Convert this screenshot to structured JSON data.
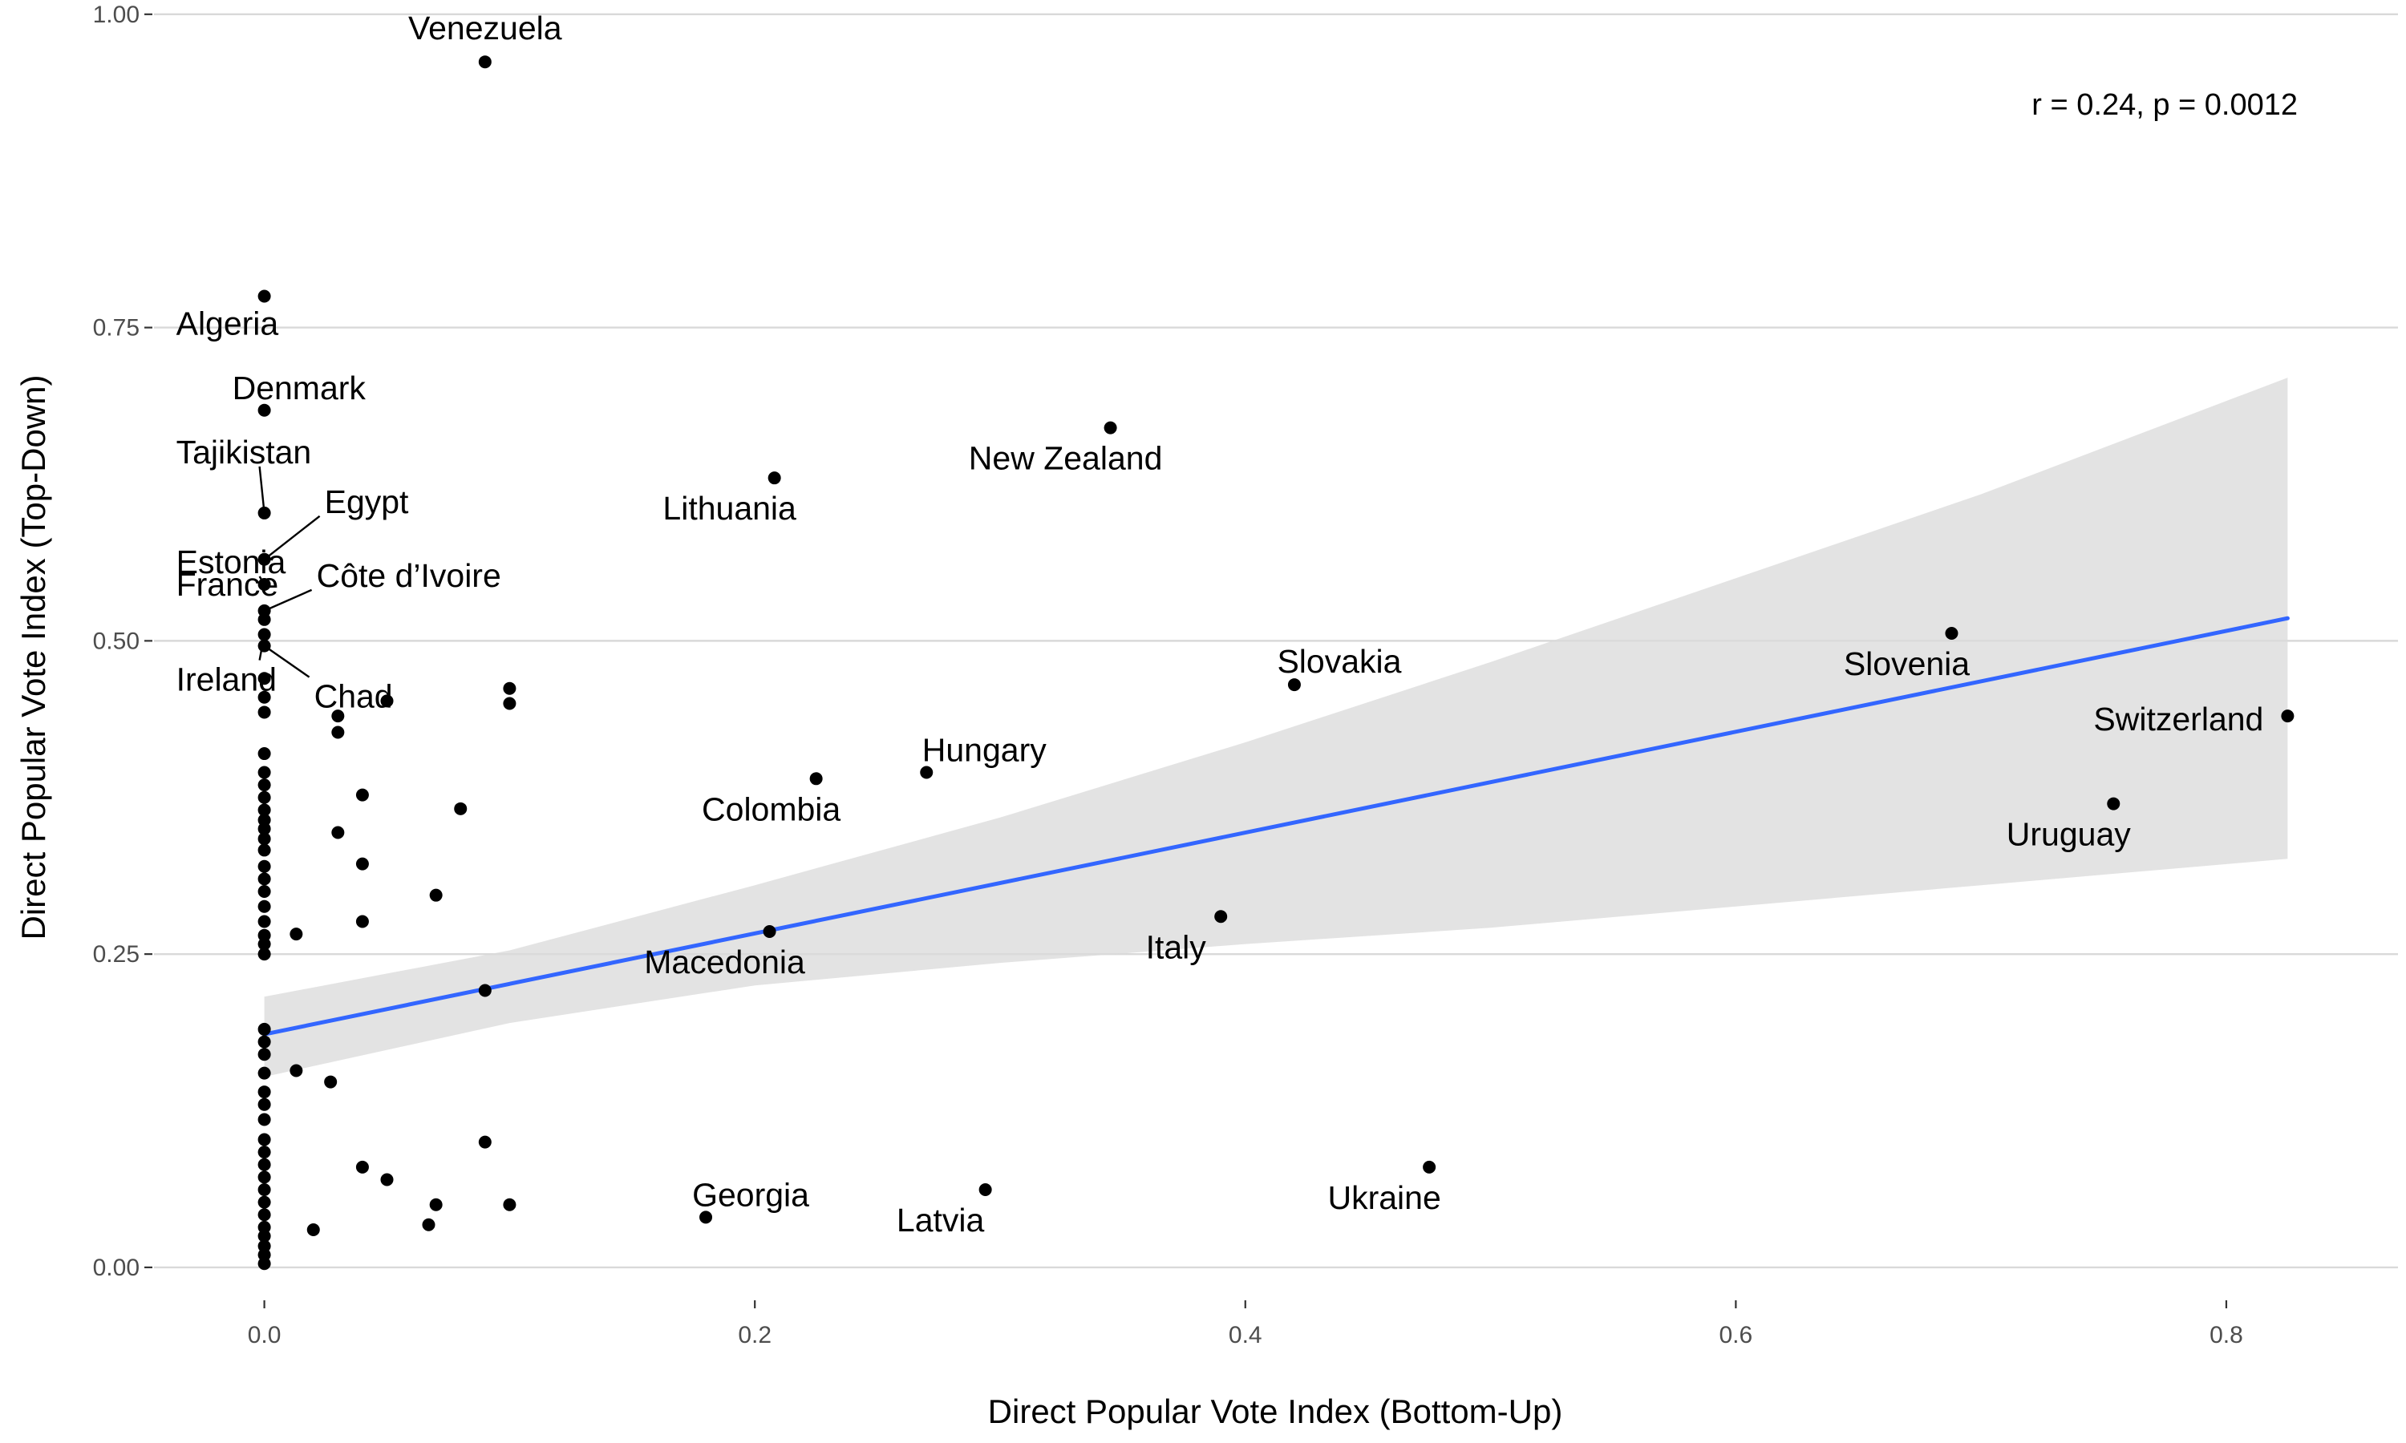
{
  "chart_data": {
    "type": "scatter",
    "xlabel": "Direct Popular Vote Index (Bottom-Up)",
    "ylabel": "Direct Popular Vote Index (Top-Down)",
    "xlim": [
      -0.045,
      0.87
    ],
    "ylim": [
      -0.025,
      1.005
    ],
    "x_ticks": [
      0.0,
      0.2,
      0.4,
      0.6,
      0.8
    ],
    "x_tick_labels": [
      "0.0",
      "0.2",
      "0.4",
      "0.6",
      "0.8"
    ],
    "y_ticks": [
      0.0,
      0.25,
      0.5,
      0.75,
      1.0
    ],
    "y_tick_labels": [
      "0.00",
      "0.25",
      "0.50",
      "0.75",
      "1.00"
    ],
    "grid": "horizontal major lines only",
    "annotation": "r = 0.24, p = 0.0012",
    "trend": {
      "method": "linear",
      "color": "#3366FF",
      "band_color": "#d9d9d9",
      "x": [
        0.0,
        0.825
      ],
      "y": [
        0.186,
        0.518
      ],
      "ci_x": [
        0.0,
        0.1,
        0.2,
        0.3,
        0.4,
        0.5,
        0.6,
        0.7,
        0.825
      ],
      "ci_lower": [
        0.152,
        0.195,
        0.225,
        0.243,
        0.258,
        0.271,
        0.288,
        0.305,
        0.326
      ],
      "ci_upper": [
        0.216,
        0.253,
        0.305,
        0.359,
        0.419,
        0.483,
        0.55,
        0.617,
        0.71
      ]
    },
    "labeled_points": [
      {
        "label": "Venezuela",
        "x": 0.09,
        "y": 0.962
      },
      {
        "label": "Algeria",
        "x": 0.0,
        "y": 0.775
      },
      {
        "label": "Denmark",
        "x": 0.0,
        "y": 0.684
      },
      {
        "label": "Tajikistan",
        "x": 0.0,
        "y": 0.602
      },
      {
        "label": "Egypt",
        "x": 0.0,
        "y": 0.565
      },
      {
        "label": "Estonia",
        "x": 0.0,
        "y": 0.545
      },
      {
        "label": "Côte d’Ivoire",
        "x": 0.0,
        "y": 0.524
      },
      {
        "label": "France",
        "x": 0.0,
        "y": 0.517
      },
      {
        "label": "Ireland",
        "x": 0.0,
        "y": 0.505
      },
      {
        "label": "Chad",
        "x": 0.0,
        "y": 0.496
      },
      {
        "label": "New Zealand",
        "x": 0.345,
        "y": 0.67
      },
      {
        "label": "Lithuania",
        "x": 0.208,
        "y": 0.63
      },
      {
        "label": "Slovakia",
        "x": 0.42,
        "y": 0.465
      },
      {
        "label": "Slovenia",
        "x": 0.688,
        "y": 0.506
      },
      {
        "label": "Switzerland",
        "x": 0.825,
        "y": 0.44
      },
      {
        "label": "Uruguay",
        "x": 0.754,
        "y": 0.37
      },
      {
        "label": "Hungary",
        "x": 0.27,
        "y": 0.395
      },
      {
        "label": "Colombia",
        "x": 0.225,
        "y": 0.39
      },
      {
        "label": "Macedonia",
        "x": 0.206,
        "y": 0.268
      },
      {
        "label": "Italy",
        "x": 0.39,
        "y": 0.28
      },
      {
        "label": "Ukraine",
        "x": 0.475,
        "y": 0.08
      },
      {
        "label": "Georgia",
        "x": 0.18,
        "y": 0.04
      },
      {
        "label": "Latvia",
        "x": 0.294,
        "y": 0.062
      }
    ],
    "points": [
      {
        "x": 0.0,
        "y": 0.47
      },
      {
        "x": 0.0,
        "y": 0.455
      },
      {
        "x": 0.0,
        "y": 0.443
      },
      {
        "x": 0.0,
        "y": 0.41
      },
      {
        "x": 0.0,
        "y": 0.395
      },
      {
        "x": 0.0,
        "y": 0.385
      },
      {
        "x": 0.0,
        "y": 0.375
      },
      {
        "x": 0.0,
        "y": 0.365
      },
      {
        "x": 0.0,
        "y": 0.357
      },
      {
        "x": 0.0,
        "y": 0.35
      },
      {
        "x": 0.0,
        "y": 0.342
      },
      {
        "x": 0.0,
        "y": 0.333
      },
      {
        "x": 0.0,
        "y": 0.32
      },
      {
        "x": 0.0,
        "y": 0.31
      },
      {
        "x": 0.0,
        "y": 0.3
      },
      {
        "x": 0.0,
        "y": 0.288
      },
      {
        "x": 0.0,
        "y": 0.276
      },
      {
        "x": 0.0,
        "y": 0.265
      },
      {
        "x": 0.0,
        "y": 0.258
      },
      {
        "x": 0.0,
        "y": 0.25
      },
      {
        "x": 0.0,
        "y": 0.19
      },
      {
        "x": 0.0,
        "y": 0.18
      },
      {
        "x": 0.0,
        "y": 0.17
      },
      {
        "x": 0.0,
        "y": 0.155
      },
      {
        "x": 0.0,
        "y": 0.14
      },
      {
        "x": 0.0,
        "y": 0.13
      },
      {
        "x": 0.0,
        "y": 0.118
      },
      {
        "x": 0.0,
        "y": 0.102
      },
      {
        "x": 0.0,
        "y": 0.092
      },
      {
        "x": 0.0,
        "y": 0.082
      },
      {
        "x": 0.0,
        "y": 0.072
      },
      {
        "x": 0.0,
        "y": 0.062
      },
      {
        "x": 0.0,
        "y": 0.052
      },
      {
        "x": 0.0,
        "y": 0.042
      },
      {
        "x": 0.0,
        "y": 0.032
      },
      {
        "x": 0.0,
        "y": 0.025
      },
      {
        "x": 0.0,
        "y": 0.017
      },
      {
        "x": 0.0,
        "y": 0.01
      },
      {
        "x": 0.0,
        "y": 0.003
      },
      {
        "x": 0.05,
        "y": 0.452
      },
      {
        "x": 0.1,
        "y": 0.462
      },
      {
        "x": 0.1,
        "y": 0.45
      },
      {
        "x": 0.03,
        "y": 0.44
      },
      {
        "x": 0.03,
        "y": 0.427
      },
      {
        "x": 0.04,
        "y": 0.377
      },
      {
        "x": 0.08,
        "y": 0.366
      },
      {
        "x": 0.03,
        "y": 0.347
      },
      {
        "x": 0.04,
        "y": 0.322
      },
      {
        "x": 0.07,
        "y": 0.297
      },
      {
        "x": 0.04,
        "y": 0.276
      },
      {
        "x": 0.013,
        "y": 0.266
      },
      {
        "x": 0.09,
        "y": 0.221
      },
      {
        "x": 0.013,
        "y": 0.157
      },
      {
        "x": 0.027,
        "y": 0.148
      },
      {
        "x": 0.09,
        "y": 0.1
      },
      {
        "x": 0.04,
        "y": 0.08
      },
      {
        "x": 0.05,
        "y": 0.07
      },
      {
        "x": 0.07,
        "y": 0.05
      },
      {
        "x": 0.1,
        "y": 0.05
      },
      {
        "x": 0.067,
        "y": 0.034
      },
      {
        "x": 0.02,
        "y": 0.03
      }
    ]
  }
}
